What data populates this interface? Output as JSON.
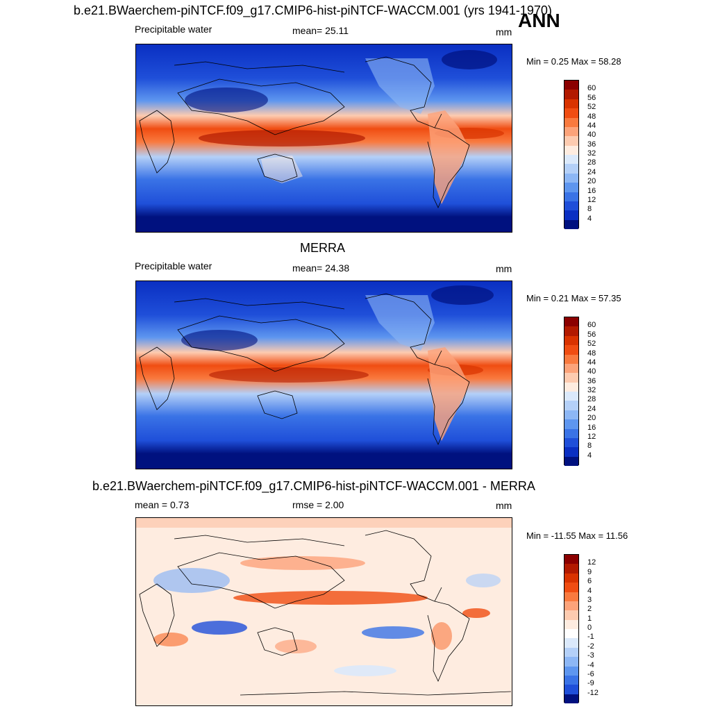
{
  "season": "ANN",
  "panels": [
    {
      "title": "b.e21.BWaerchem-piNTCF.f09_g17.CMIP6-hist-piNTCF-WACCM.001 (yrs 1941-1970)",
      "variable": "Precipitable water",
      "stat": "mean=  25.11",
      "units": "mm",
      "minmax": "Min =   0.25 Max =  58.28",
      "colorbar": {
        "labels": [
          "60",
          "56",
          "52",
          "48",
          "44",
          "40",
          "36",
          "32",
          "28",
          "24",
          "20",
          "16",
          "12",
          "8",
          "4"
        ],
        "colors": [
          "#8b0000",
          "#b21a00",
          "#d93300",
          "#f04d12",
          "#f97a3f",
          "#fca37a",
          "#fdcbb0",
          "#feece0",
          "#dbe9fb",
          "#b4d0f8",
          "#8db7f5",
          "#5e96ef",
          "#3a73e6",
          "#1f4fd9",
          "#0a2fc2",
          "#00117f"
        ]
      }
    },
    {
      "title": "MERRA",
      "variable": "Precipitable water",
      "stat": "mean=  24.38",
      "units": "mm",
      "minmax": "Min =   0.21 Max =  57.35",
      "colorbar": {
        "labels": [
          "60",
          "56",
          "52",
          "48",
          "44",
          "40",
          "36",
          "32",
          "28",
          "24",
          "20",
          "16",
          "12",
          "8",
          "4"
        ],
        "colors": [
          "#8b0000",
          "#b21a00",
          "#d93300",
          "#f04d12",
          "#f97a3f",
          "#fca37a",
          "#fdcbb0",
          "#feece0",
          "#dbe9fb",
          "#b4d0f8",
          "#8db7f5",
          "#5e96ef",
          "#3a73e6",
          "#1f4fd9",
          "#0a2fc2",
          "#00117f"
        ]
      }
    },
    {
      "title": "b.e21.BWaerchem-piNTCF.f09_g17.CMIP6-hist-piNTCF-WACCM.001 - MERRA",
      "variable": "mean =    0.73",
      "stat": "rmse =    2.00",
      "units": "mm",
      "minmax": "Min = -11.55 Max =  11.56",
      "colorbar": {
        "labels": [
          "12",
          "9",
          "6",
          "4",
          "3",
          "2",
          "1",
          "0",
          "-1",
          "-2",
          "-3",
          "-4",
          "-6",
          "-9",
          "-12"
        ],
        "colors": [
          "#8b0000",
          "#b21a00",
          "#d93300",
          "#f04d12",
          "#f97a3f",
          "#fca37a",
          "#fdcbb0",
          "#feece0",
          "#ffffff",
          "#dbe9fb",
          "#b4d0f8",
          "#8db7f5",
          "#5e96ef",
          "#3a73e6",
          "#1f4fd9",
          "#00117f"
        ]
      }
    }
  ]
}
